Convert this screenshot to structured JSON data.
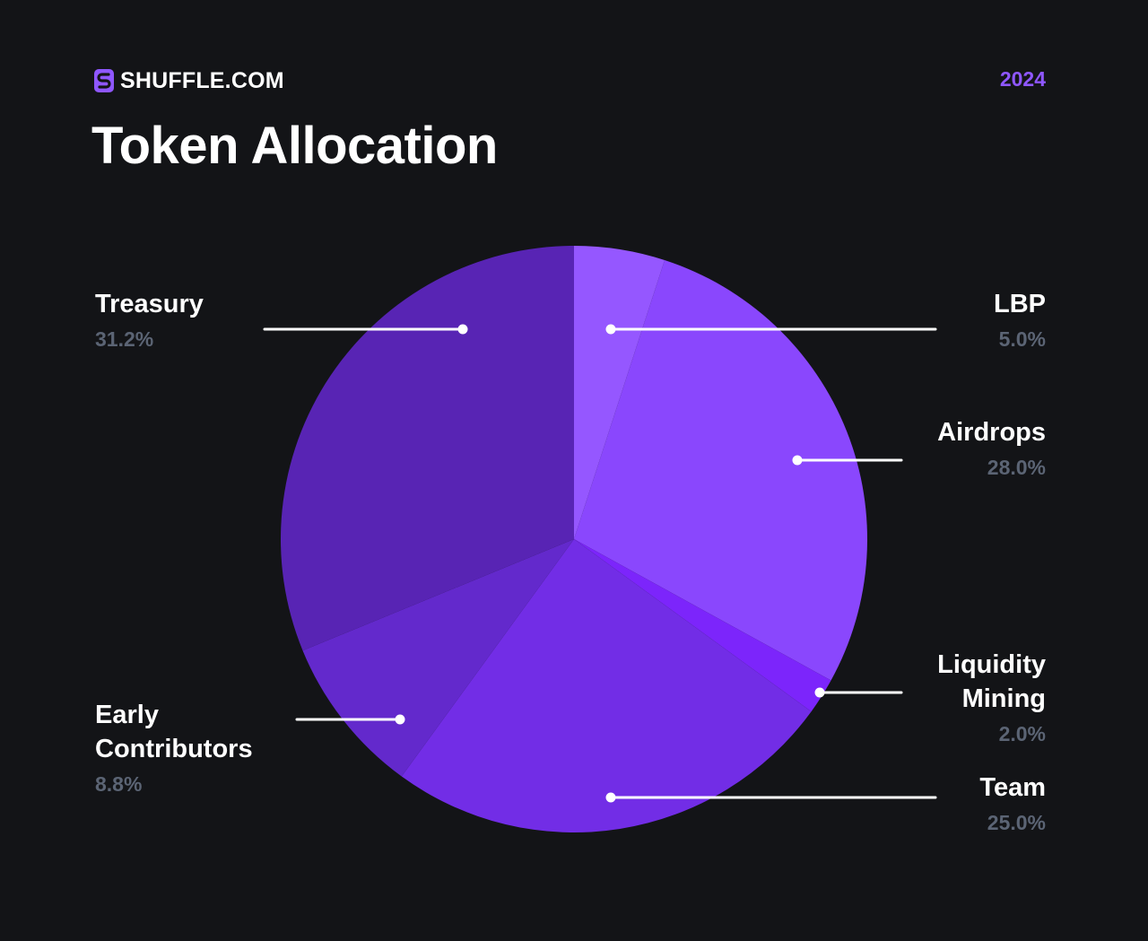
{
  "header": {
    "brand": "SHUFFLE.COM",
    "year": "2024",
    "title": "Token Allocation"
  },
  "colors": {
    "background": "#131417",
    "accent": "#8f57ff",
    "label_value": "#5b6474",
    "leader_line": "#ffffff"
  },
  "chart_data": {
    "type": "pie",
    "title": "Token Allocation",
    "slices": [
      {
        "label": "LBP",
        "value": 5.0,
        "display": "5.0%",
        "color": "#9557ff"
      },
      {
        "label": "Airdrops",
        "value": 28.0,
        "display": "28.0%",
        "color": "#8a47fd"
      },
      {
        "label": "Liquidity Mining",
        "value": 2.0,
        "display": "2.0%",
        "color": "#7c25fb"
      },
      {
        "label": "Team",
        "value": 25.0,
        "display": "25.0%",
        "color": "#722de6"
      },
      {
        "label": "Early Contributors",
        "value": 8.8,
        "display": "8.8%",
        "color": "#6329cc"
      },
      {
        "label": "Treasury",
        "value": 31.2,
        "display": "31.2%",
        "color": "#5824b4"
      }
    ],
    "start_angle": "12 o'clock",
    "direction": "clockwise",
    "legend": "callout labels with leader lines"
  },
  "labels": {
    "lbp": {
      "name": "LBP",
      "value": "5.0%"
    },
    "airdrops": {
      "name": "Airdrops",
      "value": "28.0%"
    },
    "liquidity": {
      "name": "Liquidity\nMining",
      "value": "2.0%"
    },
    "team": {
      "name": "Team",
      "value": "25.0%"
    },
    "early": {
      "name": "Early\nContributors",
      "value": "8.8%"
    },
    "treasury": {
      "name": "Treasury",
      "value": "31.2%"
    }
  }
}
